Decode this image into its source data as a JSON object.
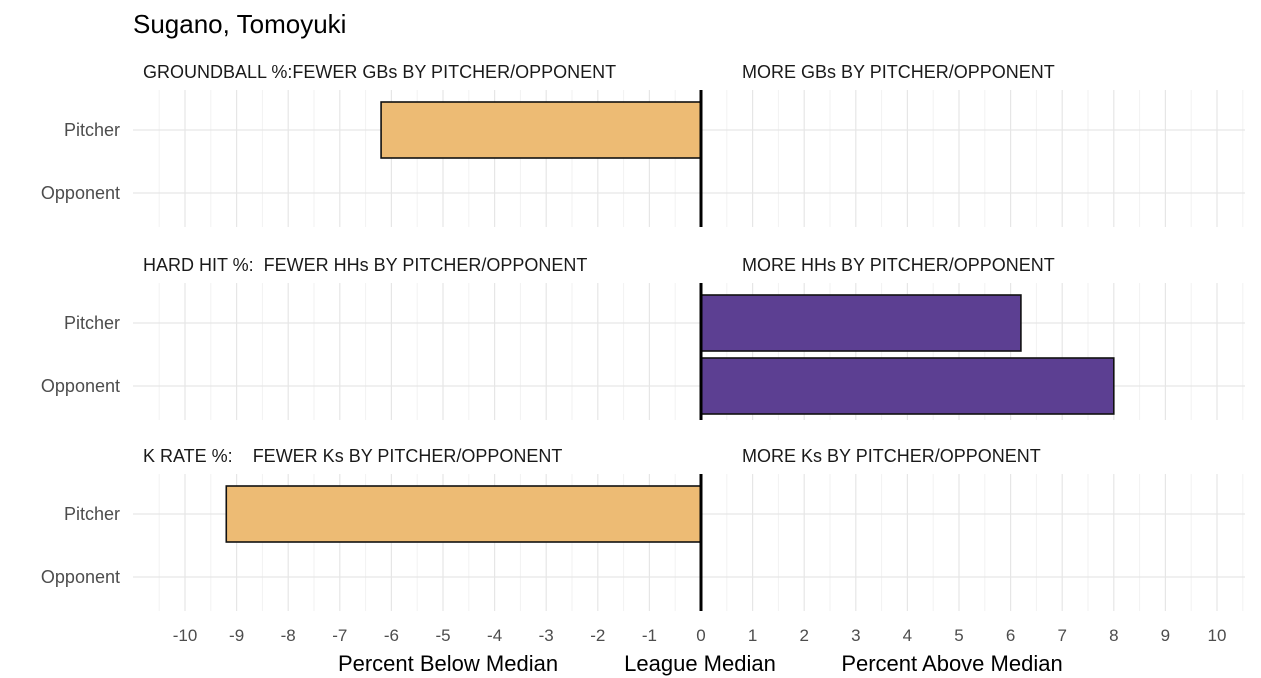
{
  "title": "Sugano, Tomoyuki",
  "chart_data": {
    "type": "bar",
    "orientation": "horizontal",
    "categories": [
      "Pitcher",
      "Opponent"
    ],
    "xlim": [
      -11,
      11
    ],
    "xticks": [
      -10,
      -9,
      -8,
      -7,
      -6,
      -5,
      -4,
      -3,
      -2,
      -1,
      0,
      1,
      2,
      3,
      4,
      5,
      6,
      7,
      8,
      9,
      10
    ],
    "xlabels": [
      "Percent Below Median",
      "League Median",
      "Percent Above Median"
    ],
    "grid": true,
    "panels": [
      {
        "label_left": "GROUNDBALL %:FEWER GBs BY PITCHER/OPPONENT",
        "label_right": "MORE GBs BY PITCHER/OPPONENT",
        "color": "#EDBB74",
        "values": {
          "Pitcher": -6.2,
          "Opponent": null
        }
      },
      {
        "label_left": "HARD HIT %:  FEWER HHs BY PITCHER/OPPONENT",
        "label_right": "MORE HHs BY PITCHER/OPPONENT",
        "color": "#5C3F92",
        "values": {
          "Pitcher": 6.2,
          "Opponent": 8.0
        }
      },
      {
        "label_left": "K RATE %:    FEWER Ks BY PITCHER/OPPONENT",
        "label_right": "MORE Ks BY PITCHER/OPPONENT",
        "color": "#EDBB74",
        "values": {
          "Pitcher": -9.2,
          "Opponent": null
        }
      }
    ]
  }
}
